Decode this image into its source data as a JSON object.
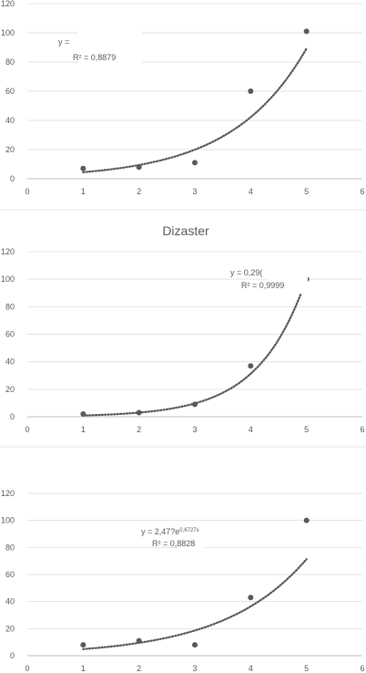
{
  "chart_data": [
    {
      "type": "scatter",
      "title": "",
      "xlim": [
        0,
        6
      ],
      "ylim": [
        0,
        120
      ],
      "xticks": [
        "0",
        "1",
        "2",
        "3",
        "4",
        "5",
        "6"
      ],
      "yticks": [
        "0",
        "20",
        "40",
        "60",
        "80",
        "100",
        "120"
      ],
      "grid": "horizontal",
      "points": [
        [
          1,
          7
        ],
        [
          2,
          8
        ],
        [
          3,
          11
        ],
        [
          4,
          60
        ],
        [
          5,
          101
        ]
      ],
      "trendline": {
        "type": "exponential",
        "a": 2.1,
        "b": 0.75,
        "style": "dotted"
      },
      "equation": "y = ",
      "r_squared": "R² = 0,8879",
      "marker_color": "#595959"
    },
    {
      "type": "scatter",
      "title": "Dizaster",
      "xlim": [
        0,
        6
      ],
      "ylim": [
        0,
        120
      ],
      "xticks": [
        "0",
        "1",
        "2",
        "3",
        "4",
        "5",
        "6"
      ],
      "yticks": [
        "0",
        "20",
        "40",
        "60",
        "80",
        "100",
        "120"
      ],
      "grid": "horizontal",
      "points": [
        [
          1,
          2
        ],
        [
          2,
          3
        ],
        [
          3,
          9
        ],
        [
          4,
          37
        ],
        [
          5,
          100
        ]
      ],
      "trendline": {
        "type": "exponential",
        "a": 0.29,
        "b": 1.17,
        "style": "dotted"
      },
      "equation": "y = 0,29(",
      "r_squared": "R² = 0,9999",
      "marker_color": "#595959"
    },
    {
      "type": "scatter",
      "title": "",
      "xlim": [
        0,
        6
      ],
      "ylim": [
        0,
        120
      ],
      "xticks": [
        "0",
        "1",
        "2",
        "3",
        "4",
        "5",
        "6"
      ],
      "yticks": [
        "0",
        "20",
        "40",
        "60",
        "80",
        "100",
        "120"
      ],
      "grid": "horizontal",
      "points": [
        [
          1,
          8
        ],
        [
          2,
          11
        ],
        [
          3,
          8
        ],
        [
          4,
          43
        ],
        [
          5,
          100
        ]
      ],
      "trendline": {
        "type": "exponential",
        "a": 2.47,
        "b": 0.6727,
        "style": "dotted"
      },
      "equation": "y = 2,47?e",
      "equation_exp": "0,6727x",
      "r_squared": "R² = 0,8828",
      "marker_color": "#595959"
    }
  ]
}
